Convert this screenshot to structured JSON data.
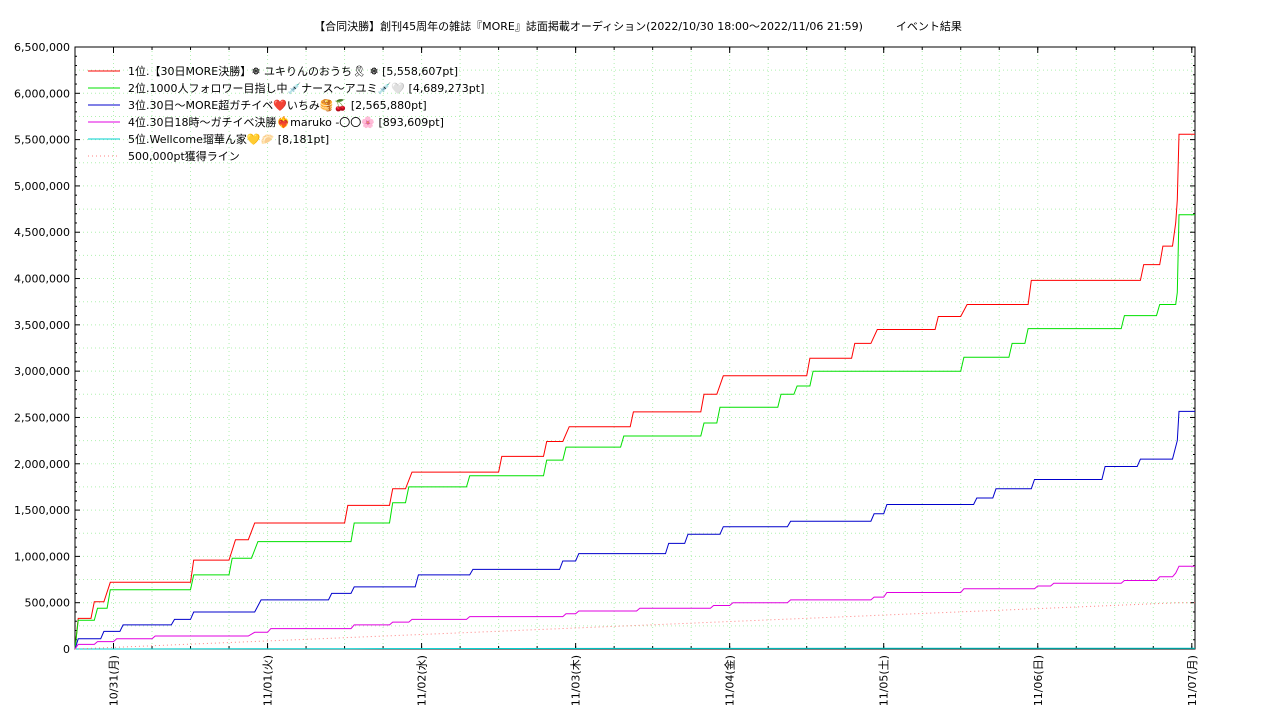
{
  "chart_data": {
    "type": "line",
    "title": "【合同決勝】創刊45周年の雑誌『MORE』誌面掲載オーディション(2022/10/30 18:00〜2022/11/06 21:59)　　　イベント結果",
    "xlabel": "",
    "ylabel": "",
    "x_range": [
      "2022-10-30 18:00",
      "2022-11-07 00:30"
    ],
    "ylim": [
      0,
      6500000
    ],
    "yticks": [
      0,
      500000,
      1000000,
      1500000,
      2000000,
      2500000,
      3000000,
      3500000,
      4000000,
      4500000,
      5000000,
      5500000,
      6000000,
      6500000
    ],
    "ytick_labels": [
      "0",
      "500,000",
      "1,000,000",
      "1,500,000",
      "2,000,000",
      "2,500,000",
      "3,000,000",
      "3,500,000",
      "4,000,000",
      "4,500,000",
      "5,000,000",
      "5,500,000",
      "6,000,000",
      "6,500,000"
    ],
    "xticks": [
      "2022-10-31 00:00",
      "2022-11-01 00:00",
      "2022-11-02 00:00",
      "2022-11-03 00:00",
      "2022-11-04 00:00",
      "2022-11-05 00:00",
      "2022-11-06 00:00",
      "2022-11-07 00:00"
    ],
    "xtick_labels": [
      "10/31(月)",
      "11/01(火)",
      "11/02(水)",
      "11/03(木)",
      "11/04(金)",
      "11/05(土)",
      "11/06(日)",
      "11/07(月)"
    ],
    "grid": true,
    "legend_position": "top-left",
    "series": [
      {
        "name": "1位.【30日MORE決勝】❅ ユキりんのおうち🎗 ❅ [5,558,607pt]",
        "color": "#ff0000",
        "dash": "solid",
        "points": [
          [
            "2022-10-30 18:00",
            0
          ],
          [
            "2022-10-30 18:30",
            330000
          ],
          [
            "2022-10-30 20:30",
            330000
          ],
          [
            "2022-10-30 21:00",
            510000
          ],
          [
            "2022-10-30 22:30",
            510000
          ],
          [
            "2022-10-30 23:30",
            720000
          ],
          [
            "2022-10-31 12:00",
            720000
          ],
          [
            "2022-10-31 12:30",
            960000
          ],
          [
            "2022-10-31 18:00",
            960000
          ],
          [
            "2022-10-31 19:00",
            1180000
          ],
          [
            "2022-10-31 21:00",
            1180000
          ],
          [
            "2022-10-31 22:00",
            1360000
          ],
          [
            "2022-11-01 12:00",
            1360000
          ],
          [
            "2022-11-01 12:30",
            1550000
          ],
          [
            "2022-11-01 19:00",
            1550000
          ],
          [
            "2022-11-01 19:30",
            1730000
          ],
          [
            "2022-11-01 21:30",
            1730000
          ],
          [
            "2022-11-01 22:30",
            1910000
          ],
          [
            "2022-11-02 12:00",
            1910000
          ],
          [
            "2022-11-02 12:30",
            2080000
          ],
          [
            "2022-11-02 19:00",
            2080000
          ],
          [
            "2022-11-02 19:30",
            2240000
          ],
          [
            "2022-11-02 22:00",
            2240000
          ],
          [
            "2022-11-02 23:00",
            2400000
          ],
          [
            "2022-11-03 08:30",
            2400000
          ],
          [
            "2022-11-03 09:00",
            2560000
          ],
          [
            "2022-11-03 19:30",
            2560000
          ],
          [
            "2022-11-03 20:00",
            2750000
          ],
          [
            "2022-11-03 22:00",
            2750000
          ],
          [
            "2022-11-03 23:00",
            2950000
          ],
          [
            "2022-11-04 12:00",
            2950000
          ],
          [
            "2022-11-04 12:30",
            3140000
          ],
          [
            "2022-11-04 19:00",
            3140000
          ],
          [
            "2022-11-04 19:30",
            3300000
          ],
          [
            "2022-11-04 22:00",
            3300000
          ],
          [
            "2022-11-04 23:00",
            3450000
          ],
          [
            "2022-11-05 08:00",
            3450000
          ],
          [
            "2022-11-05 08:30",
            3590000
          ],
          [
            "2022-11-05 12:00",
            3590000
          ],
          [
            "2022-11-05 13:00",
            3720000
          ],
          [
            "2022-11-05 22:30",
            3720000
          ],
          [
            "2022-11-05 23:00",
            3980000
          ],
          [
            "2022-11-06 16:00",
            3980000
          ],
          [
            "2022-11-06 16:30",
            4150000
          ],
          [
            "2022-11-06 19:00",
            4150000
          ],
          [
            "2022-11-06 19:30",
            4350000
          ],
          [
            "2022-11-06 21:00",
            4350000
          ],
          [
            "2022-11-06 21:30",
            4600000
          ],
          [
            "2022-11-06 21:45",
            4850000
          ],
          [
            "2022-11-06 22:00",
            5558607
          ],
          [
            "2022-11-07 00:30",
            5558607
          ]
        ]
      },
      {
        "name": "2位.1000人フォロワー目指し中💉ナース〜アユミ💉🤍 [4,689,273pt]",
        "color": "#00e000",
        "dash": "solid",
        "points": [
          [
            "2022-10-30 18:00",
            0
          ],
          [
            "2022-10-30 18:30",
            310000
          ],
          [
            "2022-10-30 21:00",
            310000
          ],
          [
            "2022-10-30 21:30",
            440000
          ],
          [
            "2022-10-30 23:00",
            440000
          ],
          [
            "2022-10-30 23:30",
            640000
          ],
          [
            "2022-10-31 12:00",
            640000
          ],
          [
            "2022-10-31 12:30",
            800000
          ],
          [
            "2022-10-31 18:00",
            800000
          ],
          [
            "2022-10-31 18:30",
            980000
          ],
          [
            "2022-10-31 21:30",
            980000
          ],
          [
            "2022-10-31 22:30",
            1160000
          ],
          [
            "2022-11-01 13:00",
            1160000
          ],
          [
            "2022-11-01 13:30",
            1360000
          ],
          [
            "2022-11-01 19:00",
            1360000
          ],
          [
            "2022-11-01 19:30",
            1580000
          ],
          [
            "2022-11-01 21:30",
            1580000
          ],
          [
            "2022-11-01 22:00",
            1750000
          ],
          [
            "2022-11-02 07:00",
            1750000
          ],
          [
            "2022-11-02 07:30",
            1870000
          ],
          [
            "2022-11-02 19:00",
            1870000
          ],
          [
            "2022-11-02 19:30",
            2040000
          ],
          [
            "2022-11-02 22:00",
            2040000
          ],
          [
            "2022-11-02 22:30",
            2180000
          ],
          [
            "2022-11-03 07:00",
            2180000
          ],
          [
            "2022-11-03 07:30",
            2300000
          ],
          [
            "2022-11-03 19:30",
            2300000
          ],
          [
            "2022-11-03 20:00",
            2440000
          ],
          [
            "2022-11-03 22:00",
            2440000
          ],
          [
            "2022-11-03 22:30",
            2610000
          ],
          [
            "2022-11-04 07:30",
            2610000
          ],
          [
            "2022-11-04 08:00",
            2750000
          ],
          [
            "2022-11-04 10:00",
            2750000
          ],
          [
            "2022-11-04 10:30",
            2840000
          ],
          [
            "2022-11-04 12:30",
            2840000
          ],
          [
            "2022-11-04 13:00",
            3000000
          ],
          [
            "2022-11-05 12:00",
            3000000
          ],
          [
            "2022-11-05 12:30",
            3150000
          ],
          [
            "2022-11-05 19:30",
            3150000
          ],
          [
            "2022-11-05 20:00",
            3300000
          ],
          [
            "2022-11-05 22:00",
            3300000
          ],
          [
            "2022-11-05 22:30",
            3460000
          ],
          [
            "2022-11-06 13:00",
            3460000
          ],
          [
            "2022-11-06 13:30",
            3600000
          ],
          [
            "2022-11-06 18:30",
            3600000
          ],
          [
            "2022-11-06 19:00",
            3720000
          ],
          [
            "2022-11-06 21:30",
            3720000
          ],
          [
            "2022-11-06 21:45",
            3850000
          ],
          [
            "2022-11-06 22:00",
            4689273
          ],
          [
            "2022-11-07 00:30",
            4689273
          ]
        ]
      },
      {
        "name": "3位.30日〜MORE超ガチイベ❤️いちみ🥞🍒 [2,565,880pt]",
        "color": "#0000cc",
        "dash": "solid",
        "points": [
          [
            "2022-10-30 18:00",
            0
          ],
          [
            "2022-10-30 18:30",
            110000
          ],
          [
            "2022-10-30 22:00",
            110000
          ],
          [
            "2022-10-30 22:30",
            190000
          ],
          [
            "2022-10-31 01:00",
            190000
          ],
          [
            "2022-10-31 01:30",
            260000
          ],
          [
            "2022-10-31 09:00",
            260000
          ],
          [
            "2022-10-31 09:30",
            320000
          ],
          [
            "2022-10-31 12:00",
            320000
          ],
          [
            "2022-10-31 12:30",
            400000
          ],
          [
            "2022-10-31 22:00",
            400000
          ],
          [
            "2022-10-31 23:00",
            530000
          ],
          [
            "2022-11-01 09:30",
            530000
          ],
          [
            "2022-11-01 10:00",
            600000
          ],
          [
            "2022-11-01 13:00",
            600000
          ],
          [
            "2022-11-01 13:30",
            670000
          ],
          [
            "2022-11-01 23:00",
            670000
          ],
          [
            "2022-11-01 23:30",
            800000
          ],
          [
            "2022-11-02 07:30",
            800000
          ],
          [
            "2022-11-02 08:00",
            860000
          ],
          [
            "2022-11-02 21:30",
            860000
          ],
          [
            "2022-11-02 22:00",
            950000
          ],
          [
            "2022-11-03 00:00",
            950000
          ],
          [
            "2022-11-03 00:30",
            1030000
          ],
          [
            "2022-11-03 14:00",
            1030000
          ],
          [
            "2022-11-03 14:30",
            1140000
          ],
          [
            "2022-11-03 17:00",
            1140000
          ],
          [
            "2022-11-03 17:30",
            1240000
          ],
          [
            "2022-11-03 22:30",
            1240000
          ],
          [
            "2022-11-03 23:00",
            1320000
          ],
          [
            "2022-11-04 09:00",
            1320000
          ],
          [
            "2022-11-04 09:30",
            1380000
          ],
          [
            "2022-11-04 22:00",
            1380000
          ],
          [
            "2022-11-04 22:30",
            1460000
          ],
          [
            "2022-11-05 00:00",
            1460000
          ],
          [
            "2022-11-05 00:30",
            1560000
          ],
          [
            "2022-11-05 14:00",
            1560000
          ],
          [
            "2022-11-05 14:30",
            1630000
          ],
          [
            "2022-11-05 17:00",
            1630000
          ],
          [
            "2022-11-05 17:30",
            1730000
          ],
          [
            "2022-11-05 23:00",
            1730000
          ],
          [
            "2022-11-05 23:30",
            1830000
          ],
          [
            "2022-11-06 10:00",
            1830000
          ],
          [
            "2022-11-06 10:30",
            1970000
          ],
          [
            "2022-11-06 15:30",
            1970000
          ],
          [
            "2022-11-06 16:00",
            2050000
          ],
          [
            "2022-11-06 21:00",
            2050000
          ],
          [
            "2022-11-06 21:45",
            2250000
          ],
          [
            "2022-11-06 22:00",
            2565880
          ],
          [
            "2022-11-07 00:30",
            2565880
          ]
        ]
      },
      {
        "name": "4位.30日18時〜ガチイベ決勝❤️‍🔥maruko -〇〇🌸 [893,609pt]",
        "color": "#e000e0",
        "dash": "solid",
        "points": [
          [
            "2022-10-30 18:00",
            0
          ],
          [
            "2022-10-30 18:30",
            50000
          ],
          [
            "2022-10-30 21:00",
            50000
          ],
          [
            "2022-10-30 21:30",
            80000
          ],
          [
            "2022-10-31 00:00",
            80000
          ],
          [
            "2022-10-31 00:30",
            110000
          ],
          [
            "2022-10-31 06:00",
            110000
          ],
          [
            "2022-10-31 06:30",
            140000
          ],
          [
            "2022-10-31 21:00",
            140000
          ],
          [
            "2022-10-31 22:00",
            180000
          ],
          [
            "2022-11-01 00:00",
            180000
          ],
          [
            "2022-11-01 00:30",
            220000
          ],
          [
            "2022-11-01 13:00",
            220000
          ],
          [
            "2022-11-01 13:30",
            260000
          ],
          [
            "2022-11-01 19:00",
            260000
          ],
          [
            "2022-11-01 19:30",
            290000
          ],
          [
            "2022-11-01 22:00",
            290000
          ],
          [
            "2022-11-01 22:30",
            320000
          ],
          [
            "2022-11-02 07:00",
            320000
          ],
          [
            "2022-11-02 07:30",
            350000
          ],
          [
            "2022-11-02 22:00",
            350000
          ],
          [
            "2022-11-02 22:30",
            380000
          ],
          [
            "2022-11-03 00:00",
            380000
          ],
          [
            "2022-11-03 00:30",
            410000
          ],
          [
            "2022-11-03 09:30",
            410000
          ],
          [
            "2022-11-03 10:00",
            440000
          ],
          [
            "2022-11-03 21:00",
            440000
          ],
          [
            "2022-11-03 21:30",
            470000
          ],
          [
            "2022-11-04 00:00",
            470000
          ],
          [
            "2022-11-04 00:30",
            500000
          ],
          [
            "2022-11-04 09:00",
            500000
          ],
          [
            "2022-11-04 09:30",
            530000
          ],
          [
            "2022-11-04 22:00",
            530000
          ],
          [
            "2022-11-04 22:30",
            560000
          ],
          [
            "2022-11-05 00:00",
            560000
          ],
          [
            "2022-11-05 00:30",
            610000
          ],
          [
            "2022-11-05 12:00",
            610000
          ],
          [
            "2022-11-05 12:30",
            650000
          ],
          [
            "2022-11-05 23:30",
            650000
          ],
          [
            "2022-11-06 00:00",
            680000
          ],
          [
            "2022-11-06 02:00",
            680000
          ],
          [
            "2022-11-06 02:30",
            710000
          ],
          [
            "2022-11-06 13:00",
            710000
          ],
          [
            "2022-11-06 13:30",
            740000
          ],
          [
            "2022-11-06 18:30",
            740000
          ],
          [
            "2022-11-06 19:00",
            780000
          ],
          [
            "2022-11-06 21:00",
            780000
          ],
          [
            "2022-11-06 21:30",
            820000
          ],
          [
            "2022-11-06 22:00",
            893609
          ],
          [
            "2022-11-07 00:30",
            893609
          ]
        ]
      },
      {
        "name": "5位.Wellcome瑠華ん家💛🥟 [8,181pt]",
        "color": "#00d0d0",
        "dash": "solid",
        "points": [
          [
            "2022-10-30 18:00",
            0
          ],
          [
            "2022-11-01 12:00",
            3000
          ],
          [
            "2022-11-03 12:00",
            6000
          ],
          [
            "2022-11-06 22:00",
            8181
          ],
          [
            "2022-11-07 00:30",
            8181
          ]
        ]
      },
      {
        "name": "500,000pt獲得ライン",
        "color": "#ff8080",
        "dash": "dotted",
        "points": [
          [
            "2022-10-30 18:00",
            0
          ],
          [
            "2022-11-06 22:00",
            500000
          ],
          [
            "2022-11-07 00:30",
            500000
          ]
        ]
      }
    ]
  }
}
